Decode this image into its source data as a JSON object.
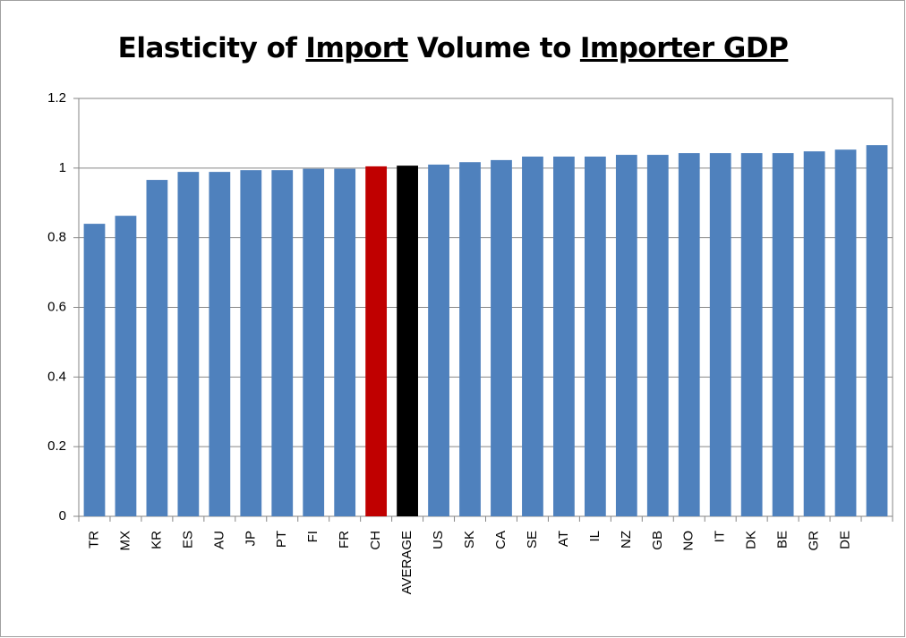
{
  "chart_data": {
    "type": "bar",
    "title": [
      "Elasticity of",
      "Import",
      "Volume to",
      "Importer GDP"
    ],
    "title_underline": [
      false,
      true,
      false,
      true
    ],
    "categories": [
      "TR",
      "MX",
      "KR",
      "ES",
      "AU",
      "JP",
      "PT",
      "FI",
      "FR",
      "CH",
      "AVERAGE",
      "US",
      "SK",
      "CA",
      "SE",
      "AT",
      "IL",
      "NZ",
      "GB",
      "NO",
      "IT",
      "DK",
      "BE",
      "GR",
      "DE",
      null
    ],
    "values": [
      0.84,
      0.863,
      0.966,
      0.989,
      0.989,
      0.994,
      0.994,
      0.998,
      0.998,
      1.005,
      1.007,
      1.01,
      1.017,
      1.023,
      1.033,
      1.033,
      1.033,
      1.038,
      1.038,
      1.043,
      1.043,
      1.043,
      1.043,
      1.048,
      1.053,
      1.066
    ],
    "colors": [
      "#4f81bd",
      "#4f81bd",
      "#4f81bd",
      "#4f81bd",
      "#4f81bd",
      "#4f81bd",
      "#4f81bd",
      "#4f81bd",
      "#4f81bd",
      "#c00000",
      "#000000",
      "#4f81bd",
      "#4f81bd",
      "#4f81bd",
      "#4f81bd",
      "#4f81bd",
      "#4f81bd",
      "#4f81bd",
      "#4f81bd",
      "#4f81bd",
      "#4f81bd",
      "#4f81bd",
      "#4f81bd",
      "#4f81bd",
      "#4f81bd",
      "#4f81bd"
    ],
    "ylim": [
      0,
      1.2
    ],
    "yticks": [
      0,
      0.2,
      0.4,
      0.6,
      0.8,
      1,
      1.2
    ],
    "grid": true
  }
}
